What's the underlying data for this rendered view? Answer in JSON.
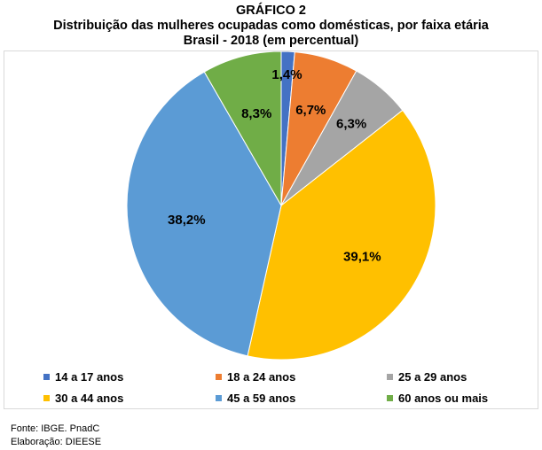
{
  "chart_data": {
    "type": "pie",
    "title": "GRÁFICO 2",
    "subtitle": "Distribuição das mulheres ocupadas como domésticas, por faixa etária",
    "subtitle2": "Brasil - 2018 (em percentual)",
    "categories": [
      "14 a 17 anos",
      "18 a 24 anos",
      "25 a 29 anos",
      "30 a 44 anos",
      "45 a 59 anos",
      "60 anos ou mais"
    ],
    "values": [
      1.4,
      6.7,
      6.3,
      39.1,
      38.2,
      8.3
    ],
    "data_labels": [
      "1,4%",
      "6,7%",
      "6,3%",
      "39,1%",
      "38,2%",
      "8,3%"
    ],
    "colors": [
      "#4472c4",
      "#ed7d31",
      "#a5a5a5",
      "#ffc000",
      "#5b9bd5",
      "#70ad47"
    ],
    "legend_position": "bottom"
  },
  "footer": {
    "source": "Fonte: IBGE. PnadC",
    "elaboration": "Elaboração: DIEESE"
  }
}
